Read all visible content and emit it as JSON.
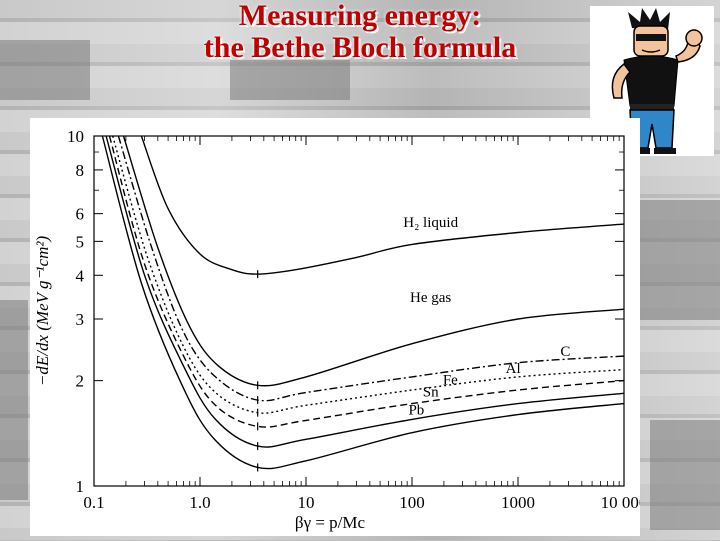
{
  "slide": {
    "title_line1": "Measuring energy:",
    "title_line2": "the Bethe Bloch formula"
  },
  "colors": {
    "title": "#c00000",
    "plot_bg": "#ffffff",
    "ink": "#000000"
  },
  "mascot": {
    "icon": "muscular-cartoon-man-flexing"
  },
  "chart_data": {
    "type": "line",
    "title": "",
    "xlabel": "βγ = p/Mc",
    "ylabel": "−dE/dx (MeV g⁻¹cm²)",
    "xscale": "log",
    "yscale": "log",
    "xlim": [
      0.1,
      10000
    ],
    "ylim": [
      1,
      10
    ],
    "x_ticks": [
      "0.1",
      "1.0",
      "10",
      "100",
      "1000",
      "10 000"
    ],
    "y_ticks": [
      "1",
      "2",
      "3",
      "4",
      "5",
      "6",
      "8",
      "10"
    ],
    "series": [
      {
        "name": "H₂ liquid",
        "dash": "",
        "label_at": [
          150,
          5.5
        ],
        "points": [
          [
            0.28,
            10
          ],
          [
            0.5,
            6.2
          ],
          [
            1,
            4.6
          ],
          [
            2,
            4.15
          ],
          [
            3.5,
            4.03
          ],
          [
            8,
            4.15
          ],
          [
            30,
            4.5
          ],
          [
            100,
            4.9
          ],
          [
            1000,
            5.3
          ],
          [
            10000,
            5.6
          ]
        ]
      },
      {
        "name": "He gas",
        "dash": "",
        "label_at": [
          150,
          3.35
        ],
        "points": [
          [
            0.19,
            10
          ],
          [
            0.4,
            4.8
          ],
          [
            0.8,
            2.85
          ],
          [
            1.5,
            2.2
          ],
          [
            3.5,
            1.94
          ],
          [
            10,
            2.05
          ],
          [
            100,
            2.55
          ],
          [
            1000,
            3.0
          ],
          [
            10000,
            3.2
          ]
        ]
      },
      {
        "name": "C",
        "dash": "8 3 2 3",
        "label_at": [
          2800,
          2.35
        ],
        "points": [
          [
            0.17,
            10
          ],
          [
            0.35,
            4.8
          ],
          [
            0.7,
            2.75
          ],
          [
            1.4,
            2.05
          ],
          [
            3.5,
            1.76
          ],
          [
            10,
            1.85
          ],
          [
            100,
            2.05
          ],
          [
            1000,
            2.25
          ],
          [
            10000,
            2.35
          ]
        ]
      },
      {
        "name": "Al",
        "dash": "2 3",
        "label_at": [
          900,
          2.1
        ],
        "points": [
          [
            0.15,
            10
          ],
          [
            0.32,
            4.5
          ],
          [
            0.7,
            2.5
          ],
          [
            1.4,
            1.85
          ],
          [
            3.5,
            1.62
          ],
          [
            10,
            1.7
          ],
          [
            100,
            1.88
          ],
          [
            1000,
            2.05
          ],
          [
            10000,
            2.15
          ]
        ]
      },
      {
        "name": "Fe",
        "dash": "7 4",
        "label_at": [
          230,
          1.95
        ],
        "points": [
          [
            0.14,
            10
          ],
          [
            0.3,
            4.3
          ],
          [
            0.7,
            2.35
          ],
          [
            1.4,
            1.7
          ],
          [
            3.5,
            1.48
          ],
          [
            10,
            1.54
          ],
          [
            100,
            1.72
          ],
          [
            1000,
            1.88
          ],
          [
            10000,
            2.0
          ]
        ]
      },
      {
        "name": "Sn",
        "dash": "",
        "label_at": [
          150,
          1.8
        ],
        "points": [
          [
            0.13,
            10
          ],
          [
            0.3,
            4.0
          ],
          [
            0.7,
            2.2
          ],
          [
            1.4,
            1.55
          ],
          [
            3.5,
            1.3
          ],
          [
            10,
            1.36
          ],
          [
            100,
            1.55
          ],
          [
            1000,
            1.72
          ],
          [
            10000,
            1.84
          ]
        ]
      },
      {
        "name": "Pb",
        "dash": "",
        "label_at": [
          110,
          1.6
        ],
        "points": [
          [
            0.12,
            10
          ],
          [
            0.28,
            3.8
          ],
          [
            0.7,
            1.9
          ],
          [
            1.4,
            1.35
          ],
          [
            3.5,
            1.13
          ],
          [
            10,
            1.18
          ],
          [
            100,
            1.42
          ],
          [
            1000,
            1.6
          ],
          [
            10000,
            1.72
          ]
        ]
      }
    ],
    "minimum_markers": [
      [
        3.5,
        4.03
      ],
      [
        3.5,
        1.94
      ],
      [
        3.5,
        1.76
      ],
      [
        3.5,
        1.62
      ],
      [
        3.5,
        1.48
      ],
      [
        3.5,
        1.3
      ],
      [
        3.5,
        1.13
      ]
    ],
    "grid": false,
    "legend": "inline-labels"
  }
}
